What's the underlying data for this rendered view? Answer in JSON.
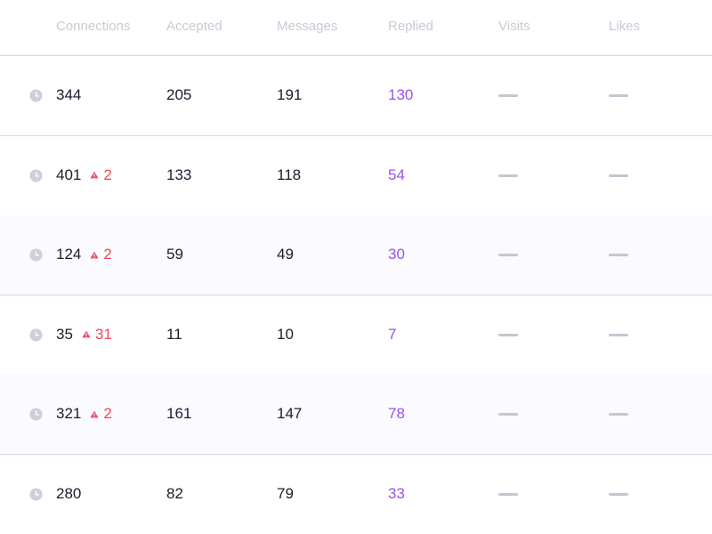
{
  "colors": {
    "header_text": "#c9c9d6",
    "value_text": "#1d1b2e",
    "replied_text": "#9a4ff0",
    "warning": "#f0445a",
    "dash": "#c6c5d3",
    "divider": "#d6d6de",
    "alt_row_bg": "#fbfaff"
  },
  "table": {
    "headers": {
      "connections": "Connections",
      "accepted": "Accepted",
      "messages": "Messages",
      "replied": "Replied",
      "visits": "Visits",
      "likes": "Likes"
    },
    "rows": [
      {
        "status_icon": "clock-icon",
        "connections": "344",
        "warning": "",
        "accepted": "205",
        "messages": "191",
        "replied": "130",
        "visits": "—",
        "likes": "—",
        "alt": false
      },
      {
        "status_icon": "clock-icon",
        "connections": "401",
        "warning": "2",
        "accepted": "133",
        "messages": "118",
        "replied": "54",
        "visits": "—",
        "likes": "—",
        "alt": false
      },
      {
        "status_icon": "clock-icon",
        "connections": "124",
        "warning": "2",
        "accepted": "59",
        "messages": "49",
        "replied": "30",
        "visits": "—",
        "likes": "—",
        "alt": true
      },
      {
        "status_icon": "clock-icon",
        "connections": "35",
        "warning": "31",
        "accepted": "11",
        "messages": "10",
        "replied": "7",
        "visits": "—",
        "likes": "—",
        "alt": false
      },
      {
        "status_icon": "clock-icon",
        "connections": "321",
        "warning": "2",
        "accepted": "161",
        "messages": "147",
        "replied": "78",
        "visits": "—",
        "likes": "—",
        "alt": true
      },
      {
        "status_icon": "clock-icon",
        "connections": "280",
        "warning": "",
        "accepted": "82",
        "messages": "79",
        "replied": "33",
        "visits": "—",
        "likes": "—",
        "alt": false
      }
    ]
  }
}
